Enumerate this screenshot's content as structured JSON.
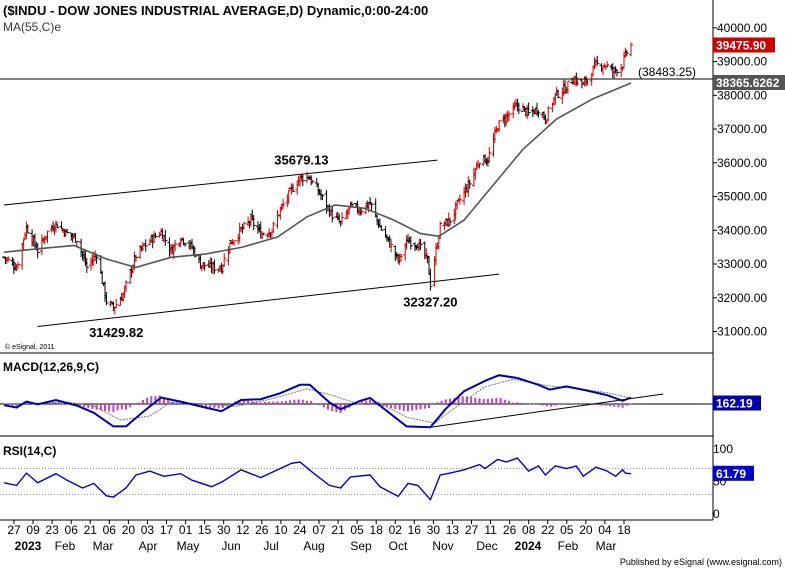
{
  "header": {
    "title": "($INDU - DOW JONES INDUSTRIAL AVERAGE,D) Dynamic,0:00-24:00",
    "ma_label": "MA(55,C)e"
  },
  "colors": {
    "up_bar": "#cc0000",
    "down_bar": "#000000",
    "ma_line": "#555555",
    "macd_line": "#0000aa",
    "signal_line": "#777777",
    "histogram": "#bb44bb",
    "rsi_line": "#0000cc",
    "price_badge": "#cc0000",
    "ma_badge": "#555555",
    "macd_badge": "#0000aa",
    "rsi_badge": "#0000cc"
  },
  "chart_data": [
    {
      "type": "ohlc",
      "panel": "price",
      "y_ticks": [
        "40000.00",
        "39000.00",
        "38000.00",
        "37000.00",
        "36000.00",
        "35000.00",
        "34000.00",
        "33000.00",
        "32000.00",
        "31000.00"
      ],
      "y_tick_values": [
        40000,
        39000,
        38000,
        37000,
        36000,
        35000,
        34000,
        33000,
        32000,
        31000
      ],
      "ylim": [
        30600,
        40350
      ],
      "x_tick_labels": [
        "27",
        "09",
        "23",
        "06",
        "21",
        "06",
        "20",
        "03",
        "17",
        "01",
        "15",
        "30",
        "12",
        "26",
        "10",
        "24",
        "07",
        "21",
        "05",
        "18",
        "02",
        "16",
        "30",
        "13",
        "27",
        "11",
        "26",
        "08",
        "22",
        "05",
        "20",
        "04",
        "18"
      ],
      "x_month_labels": [
        {
          "label": "2023",
          "at": "2023-01-01"
        },
        {
          "label": "Feb",
          "at": "2023-02-01"
        },
        {
          "label": "Mar",
          "at": "2023-03-01"
        },
        {
          "label": "Apr",
          "at": "2023-04-01"
        },
        {
          "label": "May",
          "at": "2023-05-01"
        },
        {
          "label": "Jun",
          "at": "2023-06-01"
        },
        {
          "label": "Jul",
          "at": "2023-07-01"
        },
        {
          "label": "Aug",
          "at": "2023-08-01"
        },
        {
          "label": "Sep",
          "at": "2023-09-01"
        },
        {
          "label": "Oct",
          "at": "2023-10-01"
        },
        {
          "label": "Nov",
          "at": "2023-11-01"
        },
        {
          "label": "Dec",
          "at": "2023-12-01"
        },
        {
          "label": "2024",
          "at": "2024-01-01"
        },
        {
          "label": "Feb",
          "at": "2024-02-01"
        },
        {
          "label": "Mar",
          "at": "2024-03-01"
        }
      ],
      "x_range": [
        "2022-12-27",
        "2024-03-18"
      ],
      "close_path": [
        [
          "2022-12-27",
          33200
        ],
        [
          "2023-01-05",
          32900
        ],
        [
          "2023-01-12",
          34100
        ],
        [
          "2023-01-20",
          33400
        ],
        [
          "2023-01-27",
          33950
        ],
        [
          "2023-02-02",
          34200
        ],
        [
          "2023-02-10",
          33900
        ],
        [
          "2023-02-17",
          33750
        ],
        [
          "2023-02-24",
          32900
        ],
        [
          "2023-03-03",
          33300
        ],
        [
          "2023-03-10",
          31900
        ],
        [
          "2023-03-15",
          31700
        ],
        [
          "2023-03-22",
          32100
        ],
        [
          "2023-03-31",
          33250
        ],
        [
          "2023-04-10",
          33700
        ],
        [
          "2023-04-18",
          33950
        ],
        [
          "2023-04-25",
          33400
        ],
        [
          "2023-05-02",
          33800
        ],
        [
          "2023-05-10",
          33500
        ],
        [
          "2023-05-16",
          33000
        ],
        [
          "2023-05-24",
          32900
        ],
        [
          "2023-05-31",
          32900
        ],
        [
          "2023-06-06",
          33600
        ],
        [
          "2023-06-14",
          34000
        ],
        [
          "2023-06-21",
          34300
        ],
        [
          "2023-06-28",
          33900
        ],
        [
          "2023-07-06",
          34000
        ],
        [
          "2023-07-12",
          34600
        ],
        [
          "2023-07-20",
          35200
        ],
        [
          "2023-07-26",
          35550
        ],
        [
          "2023-08-01",
          35600
        ],
        [
          "2023-08-09",
          35100
        ],
        [
          "2023-08-17",
          34500
        ],
        [
          "2023-08-24",
          34200
        ],
        [
          "2023-08-31",
          34700
        ],
        [
          "2023-09-07",
          34600
        ],
        [
          "2023-09-14",
          34800
        ],
        [
          "2023-09-21",
          34100
        ],
        [
          "2023-09-28",
          33600
        ],
        [
          "2023-10-04",
          33100
        ],
        [
          "2023-10-11",
          33700
        ],
        [
          "2023-10-18",
          33600
        ],
        [
          "2023-10-25",
          33100
        ],
        [
          "2023-10-27",
          32417
        ],
        [
          "2023-11-03",
          34100
        ],
        [
          "2023-11-10",
          34300
        ],
        [
          "2023-11-17",
          34900
        ],
        [
          "2023-11-24",
          35400
        ],
        [
          "2023-12-01",
          36100
        ],
        [
          "2023-12-07",
          36100
        ],
        [
          "2023-12-14",
          37100
        ],
        [
          "2023-12-21",
          37400
        ],
        [
          "2023-12-28",
          37700
        ],
        [
          "2024-01-05",
          37450
        ],
        [
          "2024-01-12",
          37600
        ],
        [
          "2024-01-17",
          37300
        ],
        [
          "2024-01-24",
          38000
        ],
        [
          "2024-01-31",
          38200
        ],
        [
          "2024-02-06",
          38500
        ],
        [
          "2024-02-13",
          38300
        ],
        [
          "2024-02-22",
          38900
        ],
        [
          "2024-02-29",
          38900
        ],
        [
          "2024-03-05",
          38700
        ],
        [
          "2024-03-12",
          38900
        ],
        [
          "2024-03-14",
          39200
        ],
        [
          "2024-03-18",
          39475.9
        ]
      ],
      "ma55": [
        [
          "2022-12-27",
          33350
        ],
        [
          "2023-01-20",
          33450
        ],
        [
          "2023-02-15",
          33550
        ],
        [
          "2023-03-10",
          33150
        ],
        [
          "2023-03-31",
          32900
        ],
        [
          "2023-04-25",
          33200
        ],
        [
          "2023-05-20",
          33300
        ],
        [
          "2023-06-15",
          33500
        ],
        [
          "2023-07-10",
          33800
        ],
        [
          "2023-07-31",
          34400
        ],
        [
          "2023-08-20",
          34750
        ],
        [
          "2023-09-10",
          34650
        ],
        [
          "2023-10-01",
          34300
        ],
        [
          "2023-10-20",
          33900
        ],
        [
          "2023-11-02",
          33820
        ],
        [
          "2023-11-20",
          34300
        ],
        [
          "2023-12-10",
          35300
        ],
        [
          "2024-01-01",
          36400
        ],
        [
          "2024-01-25",
          37300
        ],
        [
          "2024-02-20",
          37900
        ],
        [
          "2024-03-18",
          38365.6262
        ]
      ],
      "trendlines": [
        {
          "from": [
            "2022-12-27",
            34750
          ],
          "to": [
            "2023-11-01",
            36080
          ]
        },
        {
          "from": [
            "2023-01-20",
            31150
          ],
          "to": [
            "2023-12-15",
            32700
          ]
        }
      ],
      "horizontal_line": {
        "value": 38483.25,
        "label": "(38483.25)"
      },
      "annotations": [
        {
          "text": "35679.13",
          "date": "2023-07-27",
          "value": 35679.13,
          "position": "above"
        },
        {
          "text": "31429.82",
          "date": "2023-03-17",
          "value": 31429.82,
          "position": "below"
        },
        {
          "text": "32327.20",
          "date": "2023-10-27",
          "value": 32327.2,
          "position": "below"
        }
      ],
      "last_price_label": "39475.90",
      "last_price_value": 39475.9,
      "ma_last_label": "38365.6262",
      "ma_last_value": 38365.6262,
      "copyright": "© eSignal, 2011"
    },
    {
      "type": "line",
      "panel": "macd",
      "title": "MACD(12,26,9,C)",
      "ylim": [
        -700,
        800
      ],
      "macd": [
        [
          "2022-12-27",
          -30
        ],
        [
          "2023-01-05",
          -90
        ],
        [
          "2023-01-12",
          60
        ],
        [
          "2023-01-20",
          -10
        ],
        [
          "2023-02-02",
          100
        ],
        [
          "2023-02-17",
          -40
        ],
        [
          "2023-03-01",
          -220
        ],
        [
          "2023-03-15",
          -560
        ],
        [
          "2023-03-24",
          -560
        ],
        [
          "2023-04-05",
          -200
        ],
        [
          "2023-04-18",
          160
        ],
        [
          "2023-05-02",
          60
        ],
        [
          "2023-05-16",
          -60
        ],
        [
          "2023-05-31",
          -180
        ],
        [
          "2023-06-14",
          100
        ],
        [
          "2023-06-28",
          120
        ],
        [
          "2023-07-12",
          270
        ],
        [
          "2023-07-26",
          480
        ],
        [
          "2023-08-02",
          480
        ],
        [
          "2023-08-16",
          40
        ],
        [
          "2023-08-24",
          -130
        ],
        [
          "2023-09-07",
          80
        ],
        [
          "2023-09-14",
          150
        ],
        [
          "2023-09-28",
          -230
        ],
        [
          "2023-10-10",
          -560
        ],
        [
          "2023-10-27",
          -580
        ],
        [
          "2023-11-07",
          -120
        ],
        [
          "2023-11-20",
          320
        ],
        [
          "2023-12-05",
          580
        ],
        [
          "2023-12-15",
          720
        ],
        [
          "2023-12-28",
          650
        ],
        [
          "2024-01-12",
          480
        ],
        [
          "2024-01-20",
          360
        ],
        [
          "2024-02-01",
          440
        ],
        [
          "2024-02-15",
          340
        ],
        [
          "2024-03-01",
          220
        ],
        [
          "2024-03-12",
          80
        ],
        [
          "2024-03-18",
          162.19
        ]
      ],
      "signal": [
        [
          "2022-12-27",
          0
        ],
        [
          "2023-01-20",
          20
        ],
        [
          "2023-02-10",
          50
        ],
        [
          "2023-03-01",
          -50
        ],
        [
          "2023-03-20",
          -400
        ],
        [
          "2023-04-10",
          -300
        ],
        [
          "2023-04-25",
          50
        ],
        [
          "2023-05-20",
          0
        ],
        [
          "2023-06-10",
          -60
        ],
        [
          "2023-07-05",
          120
        ],
        [
          "2023-07-31",
          380
        ],
        [
          "2023-08-20",
          200
        ],
        [
          "2023-09-05",
          0
        ],
        [
          "2023-09-20",
          40
        ],
        [
          "2023-10-10",
          -330
        ],
        [
          "2023-10-30",
          -480
        ],
        [
          "2023-11-15",
          -50
        ],
        [
          "2023-12-05",
          430
        ],
        [
          "2023-12-25",
          620
        ],
        [
          "2024-01-20",
          450
        ],
        [
          "2024-02-10",
          380
        ],
        [
          "2024-03-01",
          280
        ],
        [
          "2024-03-18",
          150
        ]
      ],
      "histogram_hint": "macd_minus_signal",
      "trendline": {
        "from": [
          "2023-10-27",
          -580
        ],
        "to": [
          "2024-04-10",
          250
        ]
      },
      "last_label": "162.19",
      "last_value": 162.19
    },
    {
      "type": "line",
      "panel": "rsi",
      "title": "RSI(14,C)",
      "y_ticks": [
        "100",
        "50",
        "0"
      ],
      "y_tick_values": [
        100,
        50,
        0
      ],
      "ylim": [
        0,
        100
      ],
      "reference_lines": [
        70,
        30
      ],
      "rsi": [
        [
          "2022-12-27",
          48
        ],
        [
          "2023-01-05",
          44
        ],
        [
          "2023-01-12",
          63
        ],
        [
          "2023-01-20",
          48
        ],
        [
          "2023-02-02",
          62
        ],
        [
          "2023-02-10",
          52
        ],
        [
          "2023-02-21",
          40
        ],
        [
          "2023-03-01",
          47
        ],
        [
          "2023-03-10",
          28
        ],
        [
          "2023-03-15",
          26
        ],
        [
          "2023-03-24",
          40
        ],
        [
          "2023-03-31",
          60
        ],
        [
          "2023-04-10",
          66
        ],
        [
          "2023-04-20",
          58
        ],
        [
          "2023-05-02",
          62
        ],
        [
          "2023-05-10",
          52
        ],
        [
          "2023-05-24",
          42
        ],
        [
          "2023-06-01",
          50
        ],
        [
          "2023-06-14",
          68
        ],
        [
          "2023-06-28",
          56
        ],
        [
          "2023-07-12",
          70
        ],
        [
          "2023-07-20",
          78
        ],
        [
          "2023-07-26",
          80
        ],
        [
          "2023-08-04",
          64
        ],
        [
          "2023-08-16",
          44
        ],
        [
          "2023-08-24",
          40
        ],
        [
          "2023-08-31",
          57
        ],
        [
          "2023-09-14",
          60
        ],
        [
          "2023-09-21",
          42
        ],
        [
          "2023-09-28",
          34
        ],
        [
          "2023-10-04",
          27
        ],
        [
          "2023-10-11",
          47
        ],
        [
          "2023-10-18",
          44
        ],
        [
          "2023-10-27",
          22
        ],
        [
          "2023-11-03",
          60
        ],
        [
          "2023-11-10",
          63
        ],
        [
          "2023-11-20",
          68
        ],
        [
          "2023-12-01",
          76
        ],
        [
          "2023-12-05",
          70
        ],
        [
          "2023-12-14",
          84
        ],
        [
          "2023-12-20",
          80
        ],
        [
          "2023-12-28",
          86
        ],
        [
          "2024-01-05",
          66
        ],
        [
          "2024-01-12",
          74
        ],
        [
          "2024-01-17",
          60
        ],
        [
          "2024-01-24",
          74
        ],
        [
          "2024-02-01",
          70
        ],
        [
          "2024-02-08",
          74
        ],
        [
          "2024-02-13",
          58
        ],
        [
          "2024-02-22",
          72
        ],
        [
          "2024-03-01",
          66
        ],
        [
          "2024-03-07",
          58
        ],
        [
          "2024-03-12",
          68
        ],
        [
          "2024-03-14",
          63
        ],
        [
          "2024-03-18",
          61.79
        ]
      ],
      "last_label": "61.79",
      "last_value": 61.79
    }
  ],
  "footer": {
    "text": "Published by eSignal (www.esignal.com)"
  }
}
